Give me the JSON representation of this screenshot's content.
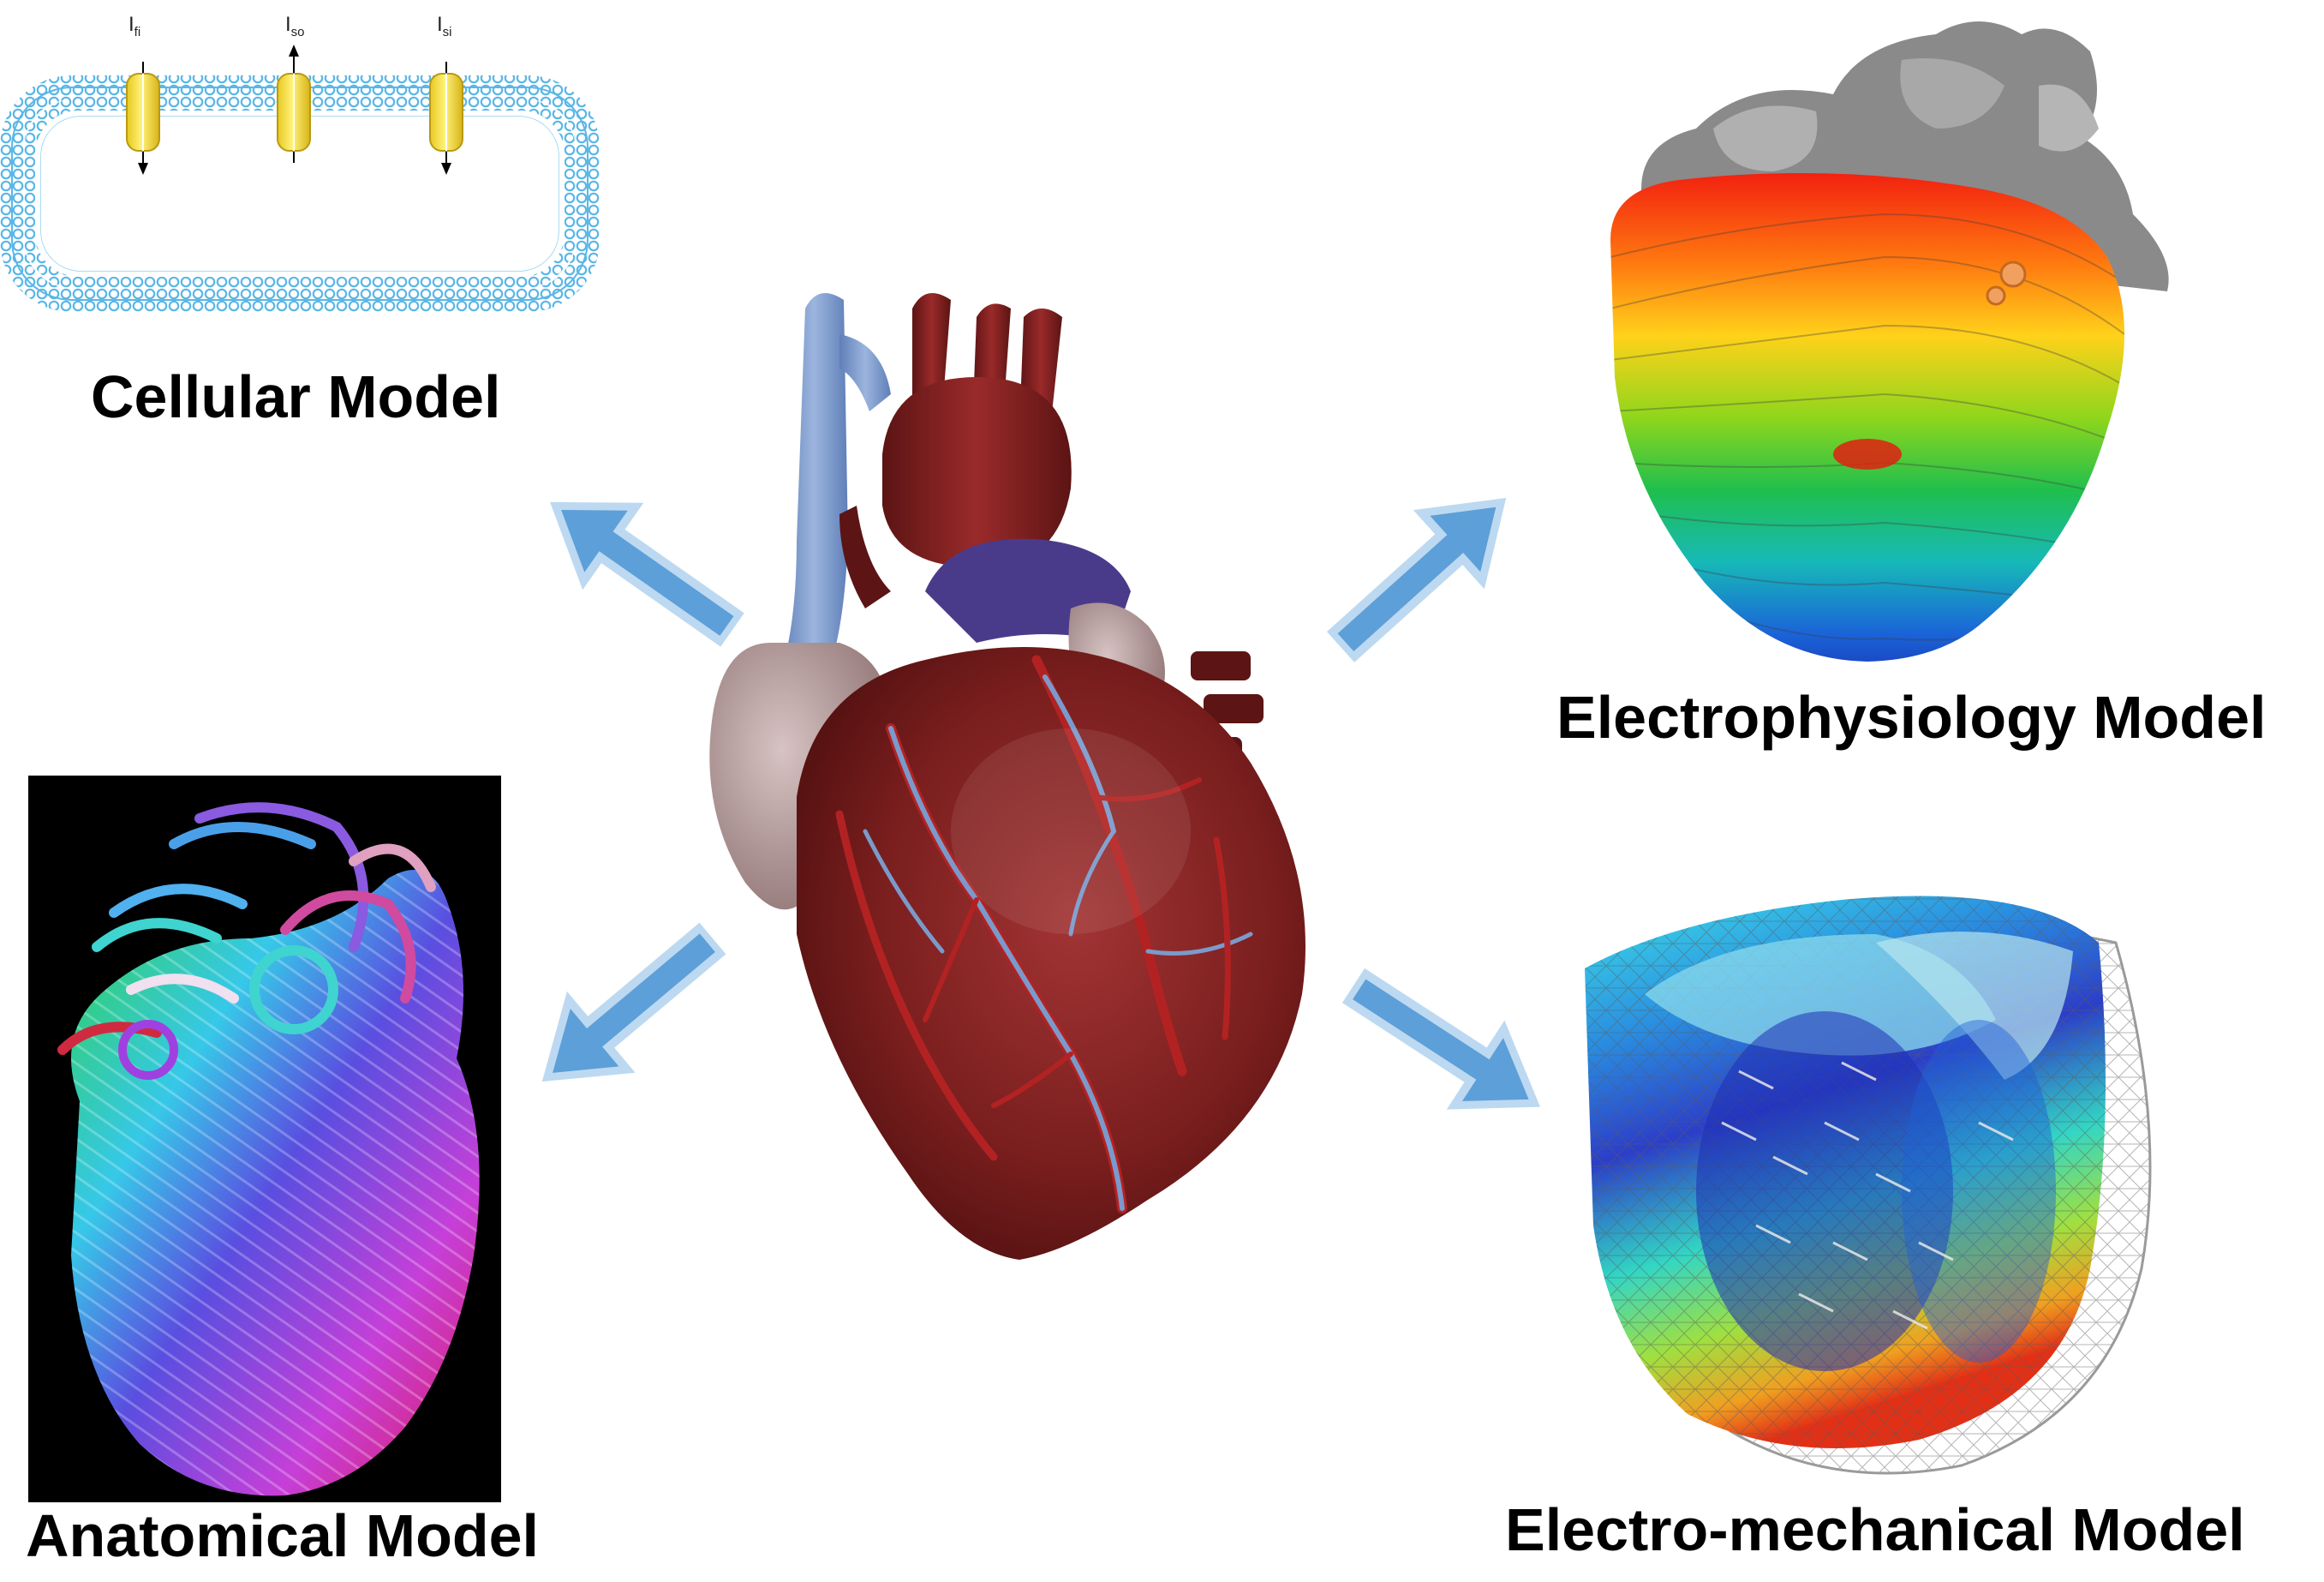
{
  "labels": {
    "cellular": "Cellular Model",
    "electrophysiology": "Electrophysiology Model",
    "anatomical": "Anatomical Model",
    "electro_mechanical": "Electro-mechanical Model"
  },
  "cell": {
    "channels": [
      {
        "main": "I",
        "sub": "fi",
        "direction": "down"
      },
      {
        "main": "I",
        "sub": "so",
        "direction": "up"
      },
      {
        "main": "I",
        "sub": "si",
        "direction": "down"
      }
    ]
  },
  "colors": {
    "membrane": "#5ab7e6",
    "channel": "#f4df34",
    "arrow_outline": "#bcd9f1",
    "arrow_fill": "#5d9fd8",
    "heart_muscle": "#7a1e1e",
    "anat_bg": "#000000"
  },
  "icons": {
    "heart": "anatomical-heart-icon",
    "arrow": "block-arrow-icon"
  }
}
